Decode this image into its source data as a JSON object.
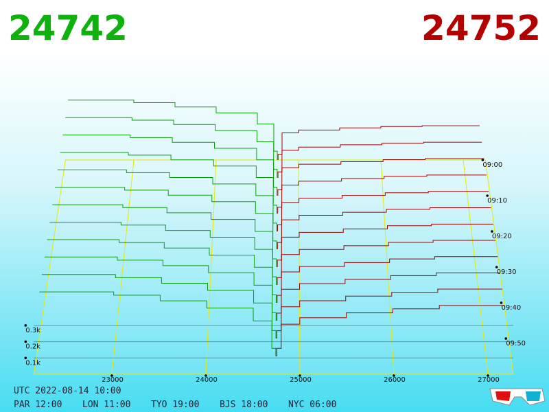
{
  "chart_data": {
    "type": "depth3d",
    "bid": 24742,
    "ask": 24752,
    "bid_color": "#0aa00a",
    "ask_color": "#a00000",
    "plim": [
      22170,
      27270
    ],
    "pticks": [
      23000,
      24000,
      25000,
      26000,
      27000
    ],
    "tlim": [
      0,
      60
    ],
    "tticks": [
      {
        "value": 0,
        "label": "09:00"
      },
      {
        "value": 10,
        "label": "09:10"
      },
      {
        "value": 20,
        "label": "09:20"
      },
      {
        "value": 30,
        "label": "09:30"
      },
      {
        "value": 40,
        "label": "09:40"
      },
      {
        "value": 50,
        "label": "09:50"
      }
    ],
    "vticks": [
      {
        "value": 300,
        "label": "0.3k"
      },
      {
        "value": 200,
        "label": "0.2k"
      },
      {
        "value": 100,
        "label": "0.1k"
      }
    ],
    "bid_prices": [
      22200,
      23000,
      23500,
      24000,
      24500,
      24700
    ],
    "ask_prices": [
      24800,
      25000,
      25500,
      26000,
      26500,
      27200
    ],
    "snapshots": [
      {
        "minute": 0,
        "bids": [
          420,
          402,
          372,
          330,
          252,
          62
        ],
        "asks": [
          40,
          190,
          210,
          225,
          235,
          240
        ]
      },
      {
        "minute": 5,
        "bids": [
          418,
          400,
          370,
          328,
          250,
          60
        ],
        "asks": [
          41,
          191,
          213,
          229,
          241,
          247
        ]
      },
      {
        "minute": 10,
        "bids": [
          416,
          398,
          366,
          325,
          246,
          58
        ],
        "asks": [
          42,
          192,
          216,
          233,
          247,
          254
        ]
      },
      {
        "minute": 15,
        "bids": [
          414,
          396,
          364,
          322,
          244,
          57
        ],
        "asks": [
          43,
          193,
          219,
          237,
          253,
          261
        ]
      },
      {
        "minute": 20,
        "bids": [
          412,
          394,
          361,
          318,
          240,
          56
        ],
        "asks": [
          44,
          194,
          222,
          241,
          259,
          268
        ]
      },
      {
        "minute": 25,
        "bids": [
          410,
          392,
          358,
          315,
          237,
          55
        ],
        "asks": [
          45,
          195,
          225,
          245,
          265,
          275
        ]
      },
      {
        "minute": 30,
        "bids": [
          409,
          390,
          356,
          312,
          234,
          54
        ],
        "asks": [
          46,
          196,
          228,
          250,
          271,
          282
        ]
      },
      {
        "minute": 35,
        "bids": [
          407,
          388,
          353,
          309,
          231,
          53
        ],
        "asks": [
          47,
          197,
          230,
          254,
          276,
          289
        ]
      },
      {
        "minute": 40,
        "bids": [
          405,
          386,
          351,
          306,
          228,
          52
        ],
        "asks": [
          48,
          198,
          233,
          258,
          281,
          296
        ]
      },
      {
        "minute": 45,
        "bids": [
          404,
          384,
          349,
          304,
          225,
          51
        ],
        "asks": [
          48,
          199,
          235,
          262,
          286,
          303
        ]
      },
      {
        "minute": 50,
        "bids": [
          402,
          382,
          347,
          302,
          223,
          50
        ],
        "asks": [
          49,
          199,
          237,
          266,
          290,
          310
        ]
      },
      {
        "minute": 55,
        "bids": [
          400,
          380,
          345,
          300,
          220,
          50
        ],
        "asks": [
          50,
          200,
          240,
          270,
          295,
          316
        ]
      }
    ]
  },
  "footer": {
    "utc": "UTC 2022-08-14 10:00",
    "zones": [
      "PAR 12:00",
      "LON 11:00",
      "TYO 19:00",
      "BJS 18:00",
      "NYC 06:00"
    ]
  }
}
